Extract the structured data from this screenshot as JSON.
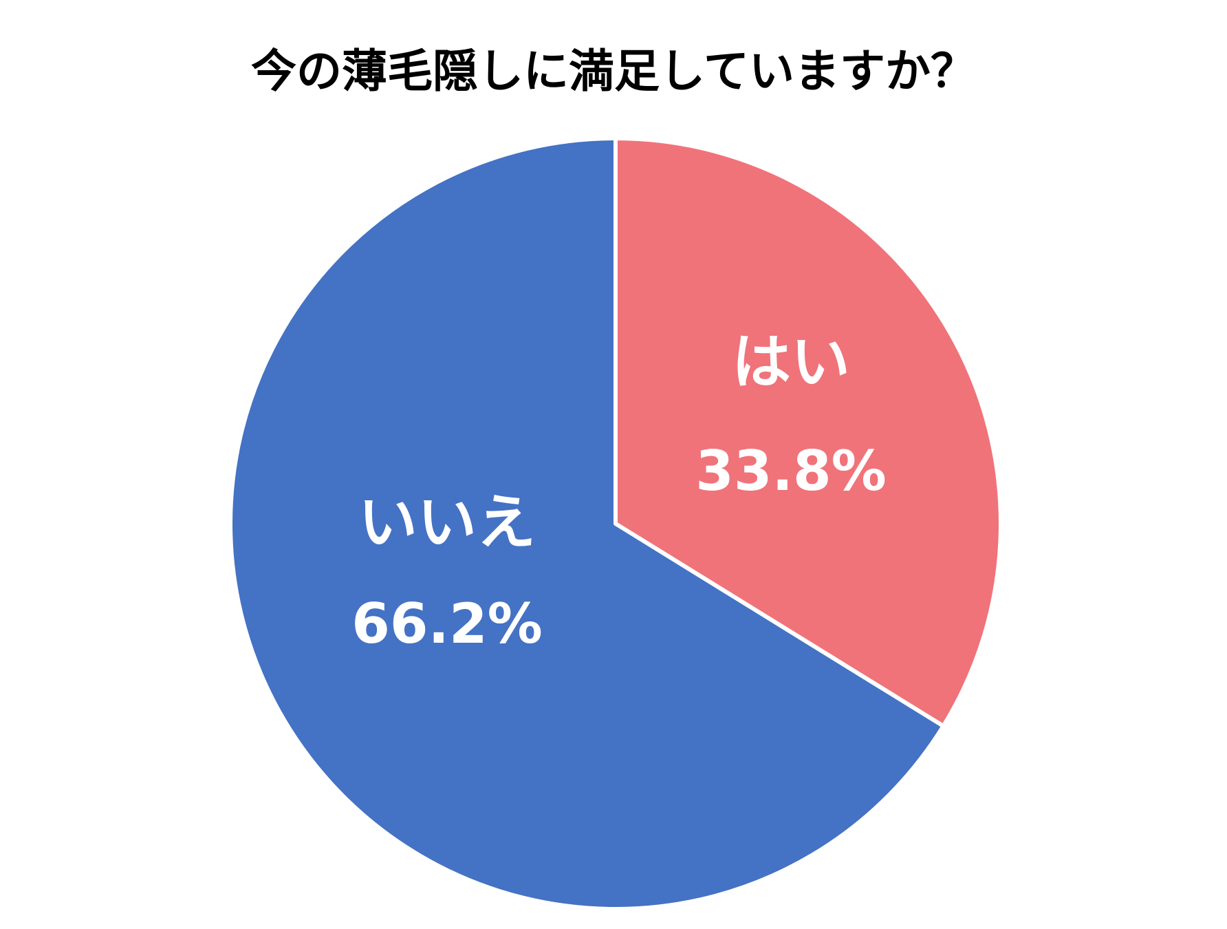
{
  "chart_data": {
    "type": "pie",
    "title": "今の薄毛隠しに満足していますか？",
    "categories": [
      "はい",
      "いいえ"
    ],
    "values": [
      33.8,
      66.2
    ],
    "value_labels": [
      "33.8%",
      "66.2%"
    ],
    "colors": [
      "#f0737a",
      "#4472c4"
    ]
  }
}
